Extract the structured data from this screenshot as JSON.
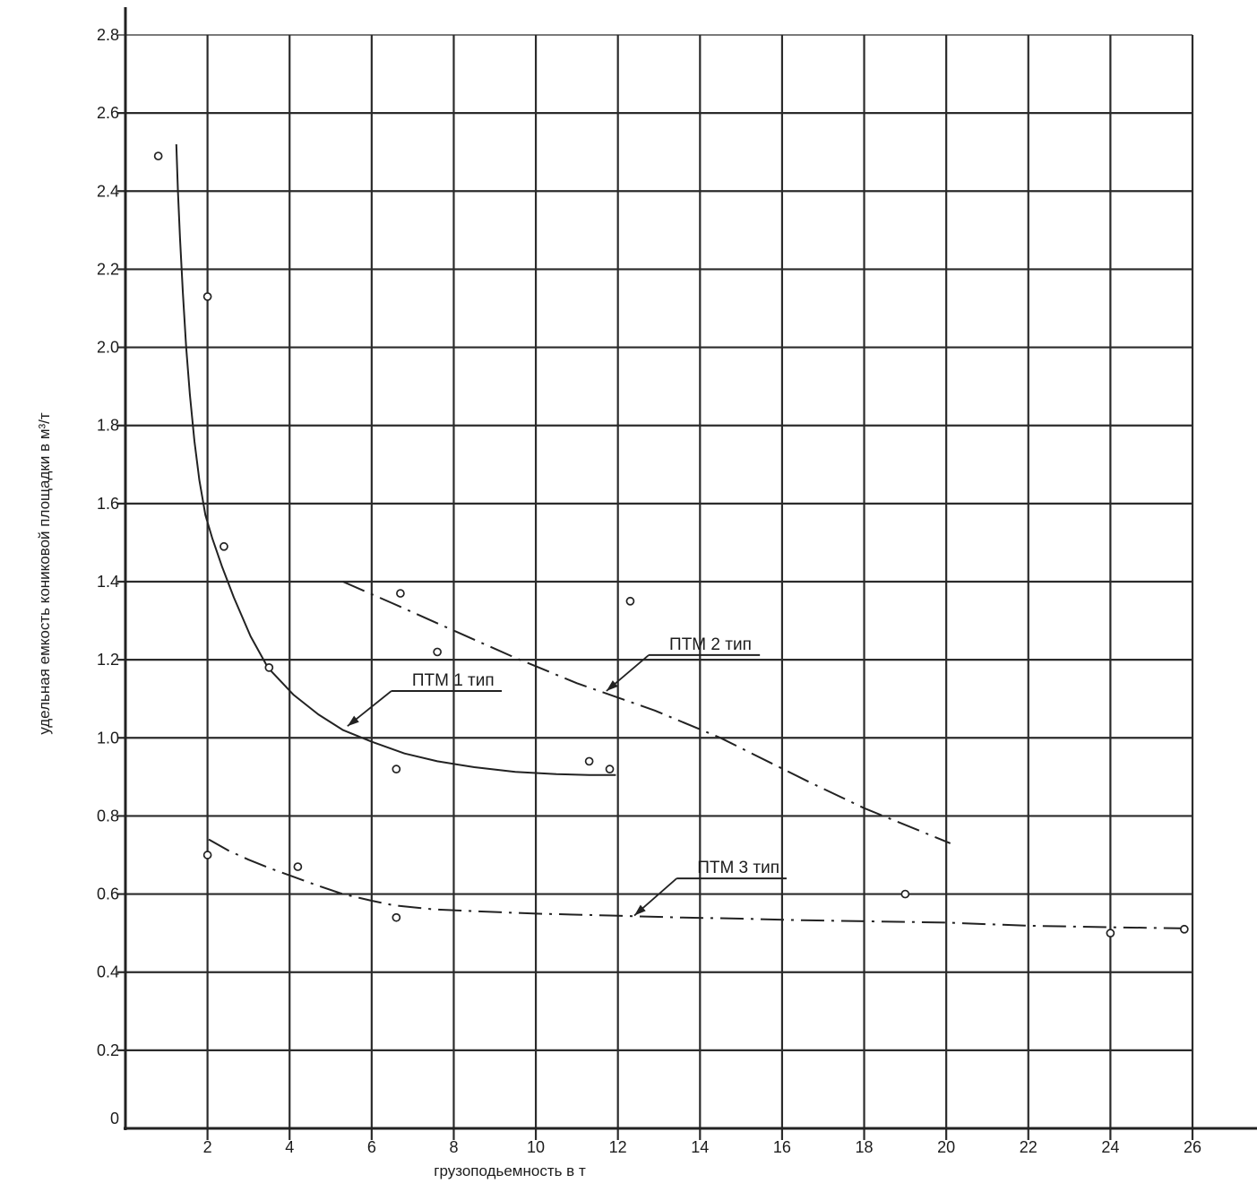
{
  "chart_data": {
    "type": "scatter",
    "title": "",
    "xlabel": "грузоподьемность в т",
    "ylabel": "удельная емкость кониковой площадки в м³/т",
    "xlim": [
      0,
      26
    ],
    "ylim": [
      0,
      2.8
    ],
    "x_ticks": [
      2,
      4,
      6,
      8,
      10,
      12,
      14,
      16,
      18,
      20,
      22,
      24,
      26
    ],
    "y_ticks": [
      0,
      0.2,
      0.4,
      0.6,
      0.8,
      1.0,
      1.2,
      1.4,
      1.6,
      1.8,
      2.0,
      2.2,
      2.4,
      2.6,
      2.8
    ],
    "grid": true,
    "legend_position": "inline-callouts",
    "scatter_points": [
      [
        0.8,
        2.49
      ],
      [
        2.0,
        2.13
      ],
      [
        2.4,
        1.49
      ],
      [
        3.5,
        1.18
      ],
      [
        6.7,
        1.37
      ],
      [
        7.6,
        1.22
      ],
      [
        12.3,
        1.35
      ],
      [
        6.6,
        0.92
      ],
      [
        11.3,
        0.94
      ],
      [
        11.8,
        0.92
      ],
      [
        2.0,
        0.7
      ],
      [
        4.2,
        0.67
      ],
      [
        6.6,
        0.54
      ],
      [
        19.0,
        0.6
      ],
      [
        24.0,
        0.5
      ],
      [
        25.8,
        0.51
      ]
    ],
    "series": [
      {
        "name": "ПТМ 1 тип",
        "line_style": "solid",
        "points": [
          [
            1.24,
            2.52
          ],
          [
            1.28,
            2.4
          ],
          [
            1.33,
            2.28
          ],
          [
            1.4,
            2.14
          ],
          [
            1.48,
            2.0
          ],
          [
            1.57,
            1.88
          ],
          [
            1.68,
            1.76
          ],
          [
            1.8,
            1.66
          ],
          [
            1.95,
            1.57
          ],
          [
            2.12,
            1.51
          ],
          [
            2.35,
            1.44
          ],
          [
            2.64,
            1.36
          ],
          [
            3.05,
            1.26
          ],
          [
            3.47,
            1.18
          ],
          [
            4.1,
            1.11
          ],
          [
            4.7,
            1.06
          ],
          [
            5.3,
            1.02
          ],
          [
            6.0,
            0.99
          ],
          [
            6.8,
            0.96
          ],
          [
            7.6,
            0.94
          ],
          [
            8.5,
            0.925
          ],
          [
            9.5,
            0.913
          ],
          [
            10.5,
            0.907
          ],
          [
            11.3,
            0.905
          ],
          [
            11.95,
            0.905
          ]
        ]
      },
      {
        "name": "ПТМ 2 тип",
        "line_style": "dashdot",
        "points": [
          [
            5.3,
            1.4
          ],
          [
            6.5,
            1.345
          ],
          [
            8.1,
            1.27
          ],
          [
            9.5,
            1.205
          ],
          [
            11.0,
            1.14
          ],
          [
            12.9,
            1.07
          ],
          [
            14.5,
            1.0
          ],
          [
            16.6,
            0.89
          ],
          [
            18.0,
            0.82
          ],
          [
            20.1,
            0.73
          ]
        ]
      },
      {
        "name": "ПТМ 3 тип",
        "line_style": "dashdot",
        "points": [
          [
            2.03,
            0.74
          ],
          [
            2.5,
            0.712
          ],
          [
            3.0,
            0.688
          ],
          [
            3.5,
            0.667
          ],
          [
            4.0,
            0.648
          ],
          [
            4.6,
            0.625
          ],
          [
            5.3,
            0.6
          ],
          [
            6.0,
            0.583
          ],
          [
            6.55,
            0.571
          ],
          [
            7.5,
            0.561
          ],
          [
            8.5,
            0.556
          ],
          [
            10.0,
            0.55
          ],
          [
            11.8,
            0.545
          ],
          [
            13.5,
            0.54
          ],
          [
            15.0,
            0.537
          ],
          [
            16.5,
            0.533
          ],
          [
            18.3,
            0.53
          ],
          [
            20.0,
            0.527
          ],
          [
            22.0,
            0.519
          ],
          [
            24.0,
            0.515
          ],
          [
            25.9,
            0.512
          ]
        ]
      }
    ],
    "callouts": [
      {
        "label": "ПТМ 1 тип",
        "underline": [
          [
            6.48,
            1.12
          ],
          [
            9.17,
            1.12
          ]
        ],
        "tip": [
          5.41,
          1.03
        ]
      },
      {
        "label": "ПТМ 2 тип",
        "underline": [
          [
            12.75,
            1.212
          ],
          [
            15.46,
            1.212
          ]
        ],
        "tip": [
          11.72,
          1.12
        ]
      },
      {
        "label": "ПТМ 3 тип",
        "underline": [
          [
            13.43,
            0.64
          ],
          [
            16.11,
            0.64
          ]
        ],
        "tip": [
          12.4,
          0.545
        ]
      }
    ],
    "colors": {
      "ink": "#222222",
      "grid": "#2b2b2b",
      "background": "#ffffff",
      "point_fill": "#ffffff"
    }
  }
}
